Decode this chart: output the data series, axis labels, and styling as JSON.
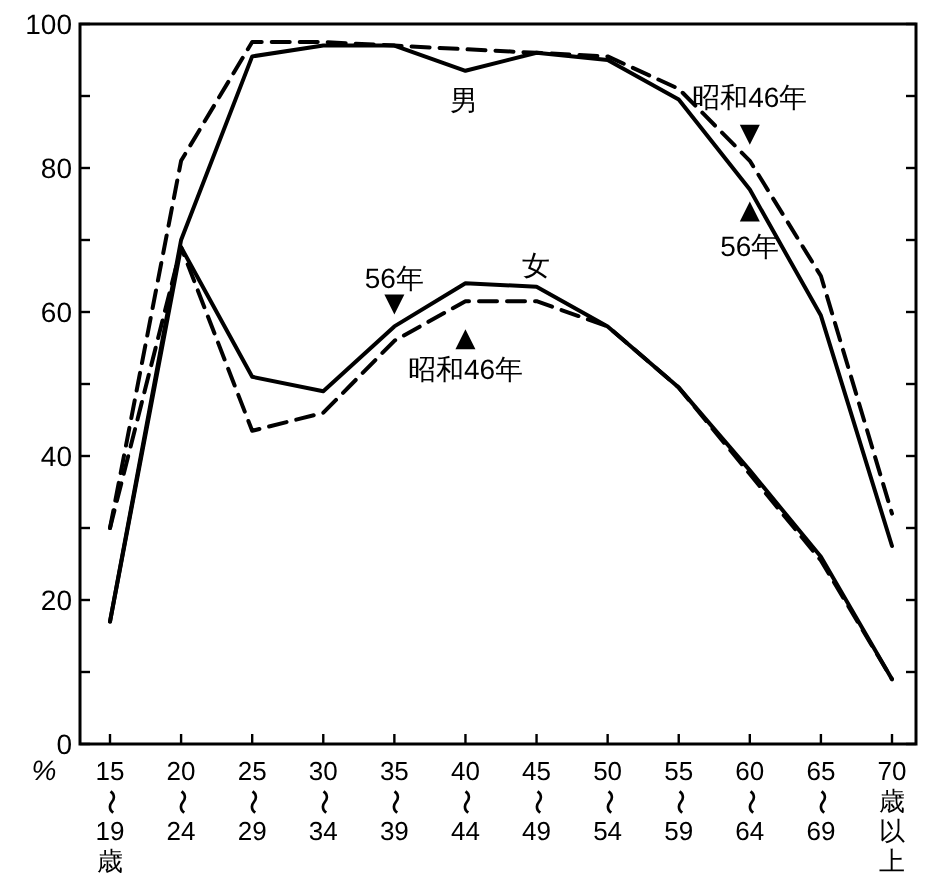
{
  "chart_data": {
    "type": "line",
    "ylabel": "%",
    "categories": [
      "15〜19歳",
      "20〜24",
      "25〜29",
      "30〜34",
      "35〜39",
      "40〜44",
      "45〜49",
      "50〜54",
      "55〜59",
      "60〜64",
      "65〜69",
      "70歳以上"
    ],
    "ylim": [
      0,
      100
    ],
    "yticks": [
      0,
      {
        "value": 10,
        "label": null
      },
      20,
      {
        "value": 30,
        "label": null
      },
      40,
      {
        "value": 50,
        "label": null
      },
      60,
      {
        "value": 70,
        "label": null
      },
      80,
      {
        "value": 90,
        "label": null
      },
      100
    ],
    "marker": "none",
    "series": [
      {
        "color": "#000000",
        "line_style": "solid",
        "values": [
          17,
          70,
          95.5,
          97,
          97,
          93.5,
          96,
          95,
          89.5,
          77,
          59.5,
          27.5
        ]
      },
      {
        "color": "#000000",
        "line_style": "dashed",
        "values": [
          30,
          81,
          97.5,
          97.5,
          97,
          96.5,
          96,
          95.5,
          91,
          81,
          65,
          32
        ]
      },
      {
        "color": "#000000",
        "line_style": "solid",
        "values": [
          17,
          69,
          51,
          49,
          58,
          64,
          63.5,
          58,
          49.5,
          38,
          26,
          9
        ]
      },
      {
        "color": "#000000",
        "line_style": "dashed",
        "values": [
          30,
          69,
          43.5,
          46,
          56,
          61.5,
          61.5,
          58,
          49.5,
          37.5,
          25.5,
          9
        ]
      }
    ],
    "annotations": [
      "男",
      "女",
      {
        "text": "56年",
        "x": "35〜39",
        "y": 58
      },
      {
        "text": "昭和46年",
        "x": "40〜44",
        "y": 61.5
      },
      {
        "text": "昭和46年",
        "x": "60〜64",
        "y": 81
      },
      {
        "text": "56年",
        "x": "60〜64",
        "y": 77
      }
    ]
  }
}
